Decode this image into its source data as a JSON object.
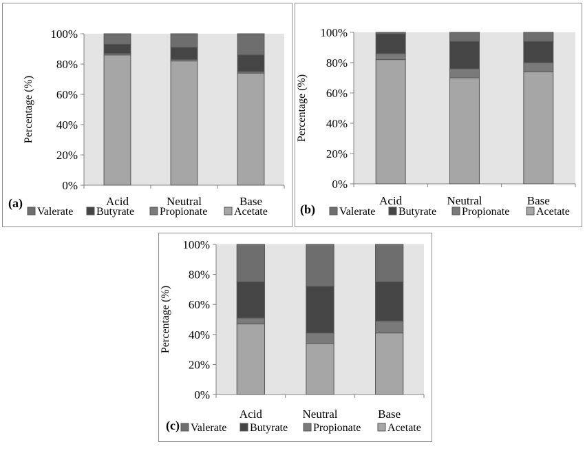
{
  "colors": {
    "Acetate": "#a6a6a6",
    "Propionate": "#7a7a7a",
    "Butyrate": "#454545",
    "Valerate": "#6e6e6e",
    "plot_bg": "#e4e4e4",
    "bar_border": "#555555"
  },
  "chart_data": [
    {
      "panel": "(a)",
      "type": "bar",
      "stacked": true,
      "categories": [
        "Acid",
        "Neutral",
        "Base"
      ],
      "series": [
        {
          "name": "Acetate",
          "values": [
            86,
            82,
            74
          ]
        },
        {
          "name": "Propionate",
          "values": [
            1,
            1,
            1
          ]
        },
        {
          "name": "Butyrate",
          "values": [
            6,
            8,
            11
          ]
        },
        {
          "name": "Valerate",
          "values": [
            7,
            9,
            14
          ]
        }
      ],
      "ylabel": "Percentage (%)",
      "ylim": [
        0,
        100
      ],
      "yticks": [
        "0%",
        "20%",
        "40%",
        "60%",
        "80%",
        "100%"
      ],
      "legend": [
        "Valerate",
        "Butyrate",
        "Propionate",
        "Acetate"
      ],
      "legend_position": "bottom"
    },
    {
      "panel": "(b)",
      "type": "bar",
      "stacked": true,
      "categories": [
        "Acid",
        "Neutral",
        "Base"
      ],
      "series": [
        {
          "name": "Acetate",
          "values": [
            82,
            70,
            74
          ]
        },
        {
          "name": "Propionate",
          "values": [
            4,
            6,
            6
          ]
        },
        {
          "name": "Butyrate",
          "values": [
            13,
            18,
            14
          ]
        },
        {
          "name": "Valerate",
          "values": [
            1,
            6,
            6
          ]
        }
      ],
      "ylabel": "Percentage (%)",
      "ylim": [
        0,
        100
      ],
      "yticks": [
        "0%",
        "20%",
        "40%",
        "60%",
        "80%",
        "100%"
      ],
      "legend": [
        "Valerate",
        "Butyrate",
        "Propionate",
        "Acetate"
      ],
      "legend_position": "bottom"
    },
    {
      "panel": "(c)",
      "type": "bar",
      "stacked": true,
      "categories": [
        "Acid",
        "Neutral",
        "Base"
      ],
      "series": [
        {
          "name": "Acetate",
          "values": [
            47,
            34,
            41
          ]
        },
        {
          "name": "Propionate",
          "values": [
            4,
            7,
            8
          ]
        },
        {
          "name": "Butyrate",
          "values": [
            24,
            31,
            26
          ]
        },
        {
          "name": "Valerate",
          "values": [
            25,
            28,
            25
          ]
        }
      ],
      "ylabel": "Percentage (%)",
      "ylim": [
        0,
        100
      ],
      "yticks": [
        "0%",
        "20%",
        "40%",
        "60%",
        "80%",
        "100%"
      ],
      "legend": [
        "Valerate",
        "Butyrate",
        "Propionate",
        "Acetate"
      ],
      "legend_position": "bottom"
    }
  ]
}
